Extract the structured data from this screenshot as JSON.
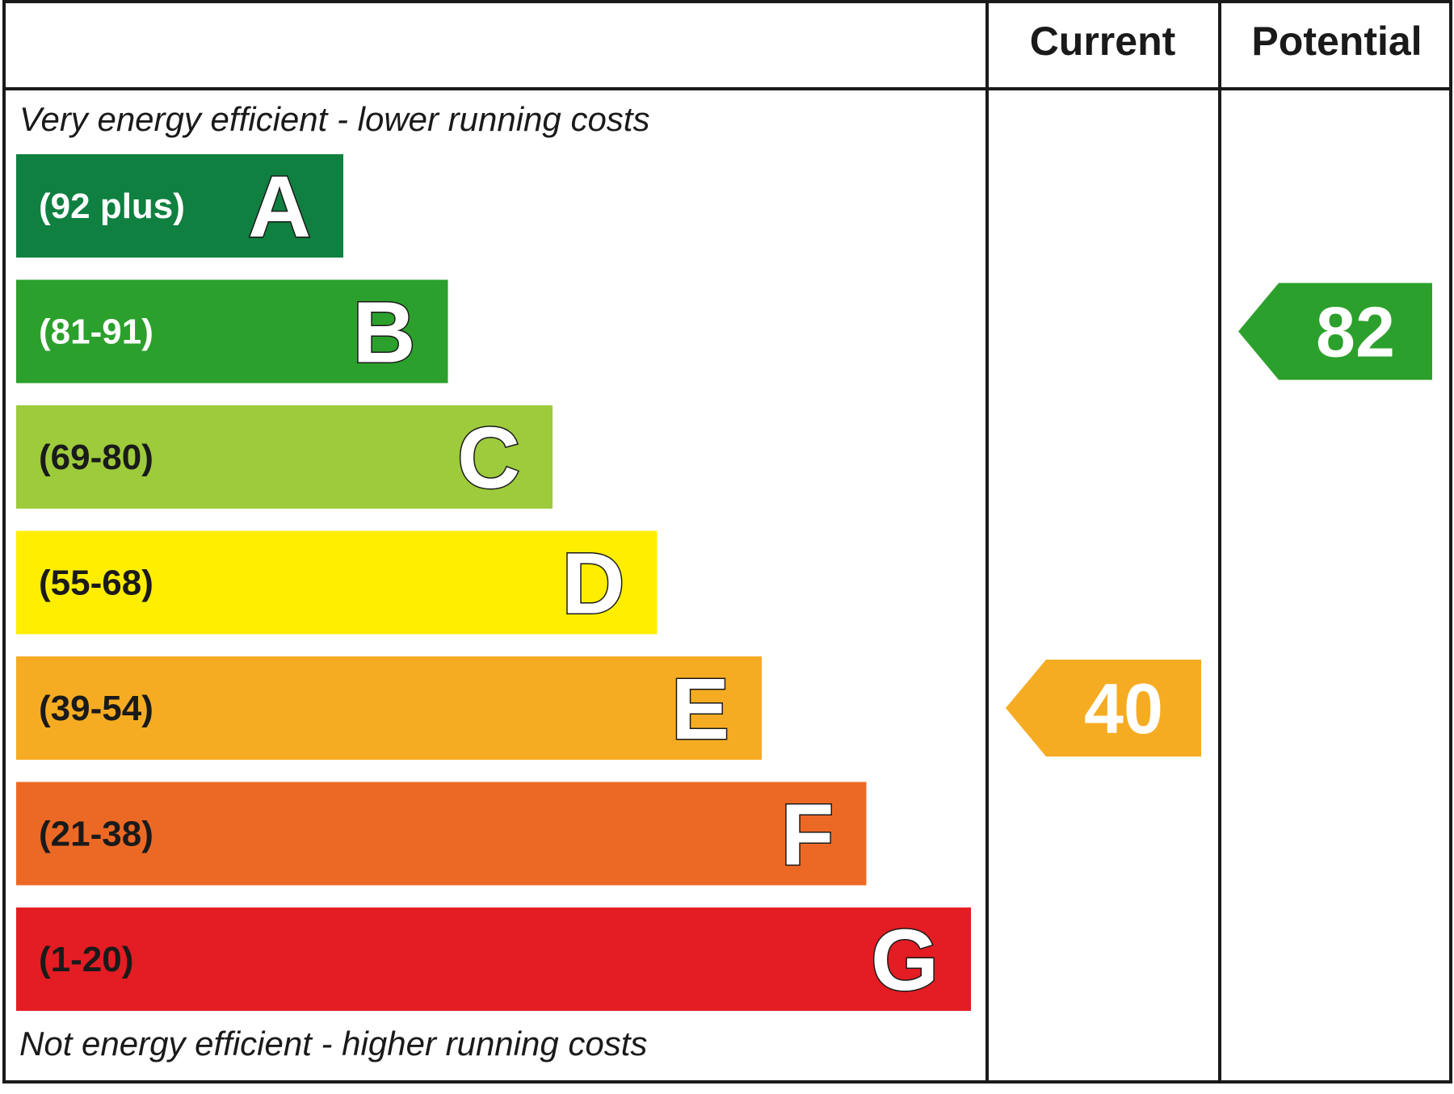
{
  "chart_data": {
    "type": "bar",
    "columns": {
      "current": "Current",
      "potential": "Potential"
    },
    "top_caption": "Very energy efficient - lower running costs",
    "bottom_caption": "Not energy efficient - higher running costs",
    "bands": [
      {
        "letter": "A",
        "range": "(92 plus)",
        "min": 92,
        "max": 100,
        "color": "#0f8040",
        "text_color": "#ffffff"
      },
      {
        "letter": "B",
        "range": "(81-91)",
        "min": 81,
        "max": 91,
        "color": "#2ca02c",
        "text_color": "#ffffff"
      },
      {
        "letter": "C",
        "range": "(69-80)",
        "min": 69,
        "max": 80,
        "color": "#9dcb3c",
        "text_color": "#1a1a1a"
      },
      {
        "letter": "D",
        "range": "(55-68)",
        "min": 55,
        "max": 68,
        "color": "#ffee00",
        "text_color": "#1a1a1a"
      },
      {
        "letter": "E",
        "range": "(39-54)",
        "min": 39,
        "max": 54,
        "color": "#f6ac22",
        "text_color": "#1a1a1a"
      },
      {
        "letter": "F",
        "range": "(21-38)",
        "min": 21,
        "max": 38,
        "color": "#ec6925",
        "text_color": "#1a1a1a"
      },
      {
        "letter": "G",
        "range": "(1-20)",
        "min": 1,
        "max": 20,
        "color": "#e31d23",
        "text_color": "#1a1a1a"
      }
    ],
    "current": {
      "value": 40,
      "band": "E",
      "color": "#f6ac22"
    },
    "potential": {
      "value": 82,
      "band": "B",
      "color": "#2ca02c"
    }
  }
}
